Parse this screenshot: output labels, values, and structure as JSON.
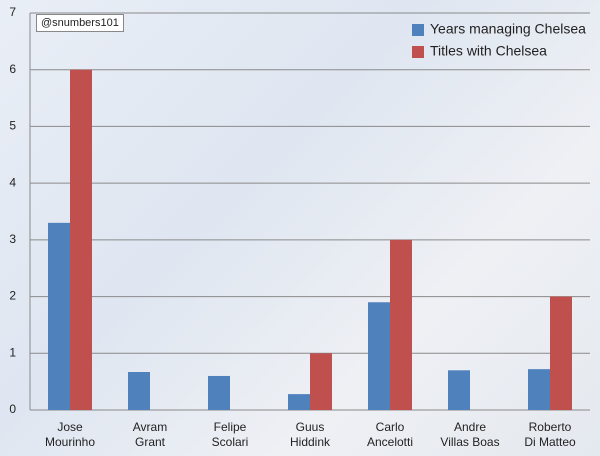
{
  "chart_data": {
    "type": "bar",
    "annotation": "@snumbers101",
    "categories": [
      "Jose\nMourinho",
      "Avram\nGrant",
      "Felipe\nScolari",
      "Guus\nHiddink",
      "Carlo\nAncelotti",
      "Andre\nVillas Boas",
      "Roberto\nDi Matteo"
    ],
    "series": [
      {
        "name": "Years managing Chelsea",
        "color": "#4f81bd",
        "values": [
          3.3,
          0.67,
          0.6,
          0.28,
          1.9,
          0.7,
          0.72
        ]
      },
      {
        "name": "Titles with Chelsea",
        "color": "#c0504d",
        "values": [
          6,
          0,
          0,
          1,
          3,
          0,
          2
        ]
      }
    ],
    "ylim": [
      0,
      7
    ],
    "yticks": [
      0,
      1,
      2,
      3,
      4,
      5,
      6,
      7
    ],
    "grid": true,
    "legend": "top-right"
  }
}
